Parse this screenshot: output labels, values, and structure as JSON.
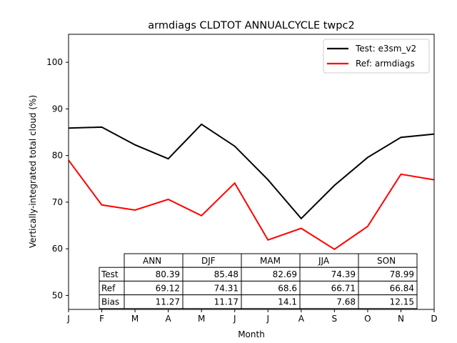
{
  "chart_data": {
    "type": "line",
    "title": "armdiags CLDTOT ANNUALCYCLE twpc2",
    "xlabel": "Month",
    "ylabel": "Vertically-integrated total cloud (%)",
    "categories": [
      "J",
      "F",
      "M",
      "A",
      "M",
      "J",
      "J",
      "A",
      "S",
      "O",
      "N",
      "D"
    ],
    "ylim": [
      47,
      106
    ],
    "yticks": [
      50,
      60,
      70,
      80,
      90,
      100
    ],
    "grid": false,
    "legend_position": "upper right",
    "series": [
      {
        "name": "Test: e3sm_v2",
        "color": "#000000",
        "values": [
          85.9,
          86.1,
          82.3,
          79.3,
          86.7,
          82.0,
          74.8,
          66.5,
          73.6,
          79.6,
          83.9,
          84.6
        ]
      },
      {
        "name": "Ref: armdiags",
        "color": "#ff0000",
        "values": [
          79.0,
          69.4,
          68.3,
          70.6,
          67.1,
          74.1,
          61.9,
          64.4,
          59.9,
          64.8,
          76.0,
          74.8
        ]
      }
    ],
    "table": {
      "col_labels": [
        "ANN",
        "DJF",
        "MAM",
        "JJA",
        "SON"
      ],
      "rows": [
        {
          "label": "Test",
          "values": [
            "80.39",
            "85.48",
            "82.69",
            "74.39",
            "78.99"
          ]
        },
        {
          "label": "Ref",
          "values": [
            "69.12",
            "74.31",
            "68.6",
            "66.71",
            "66.84"
          ]
        },
        {
          "label": "Bias",
          "values": [
            "11.27",
            "11.17",
            "14.1",
            "7.68",
            "12.15"
          ]
        }
      ]
    }
  }
}
